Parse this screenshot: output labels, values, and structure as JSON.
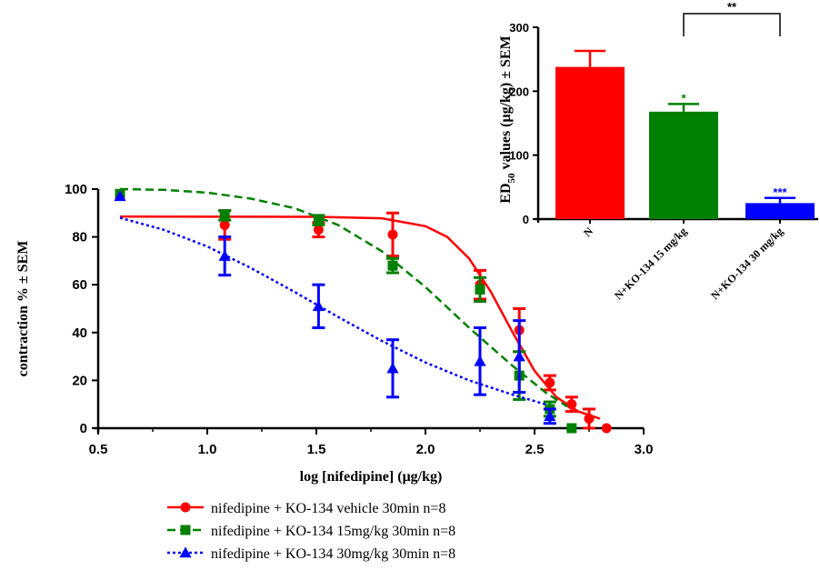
{
  "chart_data": [
    {
      "type": "line",
      "xlabel": "log [nifedipine] (μg/kg)",
      "ylabel": "contraction % ± SEM",
      "xlim": [
        0.5,
        3.0
      ],
      "ylim": [
        0,
        100
      ],
      "xticks": [
        "0.5",
        "1.0",
        "1.5",
        "2.0",
        "2.5",
        "3.0"
      ],
      "yticks": [
        "0",
        "20",
        "40",
        "60",
        "80",
        "100"
      ],
      "legend_position": "bottom",
      "grid": false,
      "series": [
        {
          "name": "nifedipine + KO-134 vehicle 30min n=8",
          "color": "#ff0000",
          "marker": "circle",
          "line_style": "solid",
          "points": [
            {
              "x": 0.6,
              "y": 98,
              "err": 0
            },
            {
              "x": 1.08,
              "y": 85,
              "err": 6
            },
            {
              "x": 1.51,
              "y": 83,
              "err": 3
            },
            {
              "x": 1.85,
              "y": 81,
              "err": 9
            },
            {
              "x": 2.25,
              "y": 60,
              "err": 6
            },
            {
              "x": 2.43,
              "y": 41,
              "err": 9
            },
            {
              "x": 2.57,
              "y": 19,
              "err": 3
            },
            {
              "x": 2.67,
              "y": 10,
              "err": 3
            },
            {
              "x": 2.75,
              "y": 4,
              "err": 4
            },
            {
              "x": 2.83,
              "y": 0,
              "err": 0
            }
          ],
          "fit": [
            [
              0.6,
              88.5
            ],
            [
              1.5,
              88.4
            ],
            [
              1.8,
              87.8
            ],
            [
              2.0,
              84.5
            ],
            [
              2.1,
              80
            ],
            [
              2.2,
              71
            ],
            [
              2.3,
              57
            ],
            [
              2.4,
              40
            ],
            [
              2.5,
              24
            ],
            [
              2.6,
              13
            ],
            [
              2.7,
              7
            ],
            [
              2.8,
              4
            ]
          ]
        },
        {
          "name": "nifedipine + KO-134 15mg/kg 30min n=8",
          "color": "#008000",
          "marker": "square",
          "line_style": "dashed",
          "points": [
            {
              "x": 0.6,
              "y": 98,
              "err": 0
            },
            {
              "x": 1.08,
              "y": 89,
              "err": 2
            },
            {
              "x": 1.51,
              "y": 87,
              "err": 2
            },
            {
              "x": 1.85,
              "y": 68,
              "err": 3
            },
            {
              "x": 2.25,
              "y": 58,
              "err": 5
            },
            {
              "x": 2.43,
              "y": 22,
              "err": 10
            },
            {
              "x": 2.57,
              "y": 8,
              "err": 3
            },
            {
              "x": 2.67,
              "y": 0,
              "err": 0
            }
          ],
          "fit": [
            [
              0.6,
              100
            ],
            [
              0.8,
              99.7
            ],
            [
              1.0,
              98.5
            ],
            [
              1.2,
              96
            ],
            [
              1.4,
              92
            ],
            [
              1.6,
              85
            ],
            [
              1.8,
              74
            ],
            [
              2.0,
              59
            ],
            [
              2.2,
              42
            ],
            [
              2.4,
              26
            ],
            [
              2.55,
              15
            ],
            [
              2.65,
              9
            ]
          ]
        },
        {
          "name": "nifedipine + KO-134 30mg/kg 30min n=8",
          "color": "#0000ff",
          "marker": "triangle",
          "line_style": "dotted",
          "points": [
            {
              "x": 0.6,
              "y": 97,
              "err": 0
            },
            {
              "x": 1.08,
              "y": 72,
              "err": 8
            },
            {
              "x": 1.51,
              "y": 51,
              "err": 9
            },
            {
              "x": 1.85,
              "y": 25,
              "err": 12
            },
            {
              "x": 2.25,
              "y": 28,
              "err": 14
            },
            {
              "x": 2.43,
              "y": 30,
              "err": 15
            },
            {
              "x": 2.57,
              "y": 5,
              "err": 3
            }
          ],
          "fit": [
            [
              0.6,
              88
            ],
            [
              0.8,
              83
            ],
            [
              1.0,
              76
            ],
            [
              1.2,
              67
            ],
            [
              1.4,
              57
            ],
            [
              1.6,
              46.5
            ],
            [
              1.8,
              36.5
            ],
            [
              2.0,
              27.5
            ],
            [
              2.2,
              20
            ],
            [
              2.4,
              14
            ],
            [
              2.55,
              10
            ]
          ]
        }
      ]
    },
    {
      "type": "bar",
      "ylabel": "ED50 values (μg/kg) ± SEM",
      "ylabel_main": "ED",
      "ylabel_sub": "50",
      "ylabel_rest": " values (μg/kg) ± SEM",
      "ylim": [
        0,
        300
      ],
      "yticks": [
        "0",
        "100",
        "200",
        "300"
      ],
      "categories": [
        "N",
        "N+KO-134 15 mg/kg",
        "N+KO-134 30 mg/kg"
      ],
      "values": [
        238,
        168,
        25
      ],
      "errors": [
        25,
        12,
        8
      ],
      "colors": [
        "#ff0000",
        "#008000",
        "#0000ff"
      ],
      "significance": [
        "",
        "*",
        "***"
      ],
      "bracket": {
        "from": 1,
        "to": 2,
        "label": "**"
      }
    }
  ]
}
